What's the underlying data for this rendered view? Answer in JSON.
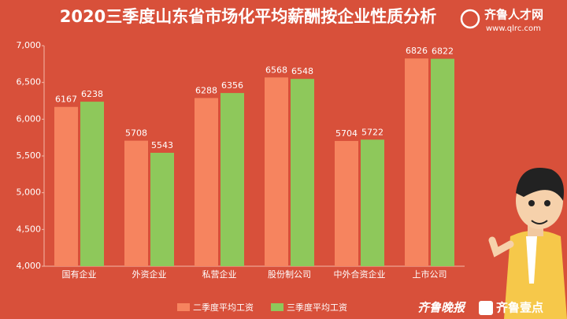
{
  "chart_data": {
    "type": "bar",
    "title": "2020三季度山东省市场化平均薪酬按企业性质分析",
    "brand": "齐鲁人才网",
    "brand_url": "www.qlrc.com",
    "footer_logos": [
      "齐鲁晚报",
      "齐鲁壹点"
    ],
    "categories": [
      "国有企业",
      "外资企业",
      "私营企业",
      "股份制公司",
      "中外合资企业",
      "上市公司"
    ],
    "series": [
      {
        "name": "二季度平均工资",
        "color": "#f6845f",
        "values": [
          6167,
          5708,
          6288,
          6568,
          5704,
          6826
        ]
      },
      {
        "name": "三季度平均工资",
        "color": "#8ec85b",
        "values": [
          6238,
          5543,
          6356,
          6548,
          5722,
          6822
        ]
      }
    ],
    "ylim": [
      4000,
      7000
    ],
    "yticks": [
      {
        "value": 4000,
        "label": "4,000"
      },
      {
        "value": 4500,
        "label": "4,500"
      },
      {
        "value": 5000,
        "label": "5,000"
      },
      {
        "value": 5500,
        "label": "5,500"
      },
      {
        "value": 6000,
        "label": "6,000"
      },
      {
        "value": 6500,
        "label": "6,500"
      },
      {
        "value": 7000,
        "label": "7,000"
      }
    ],
    "grid": false,
    "legend": "bottom"
  }
}
